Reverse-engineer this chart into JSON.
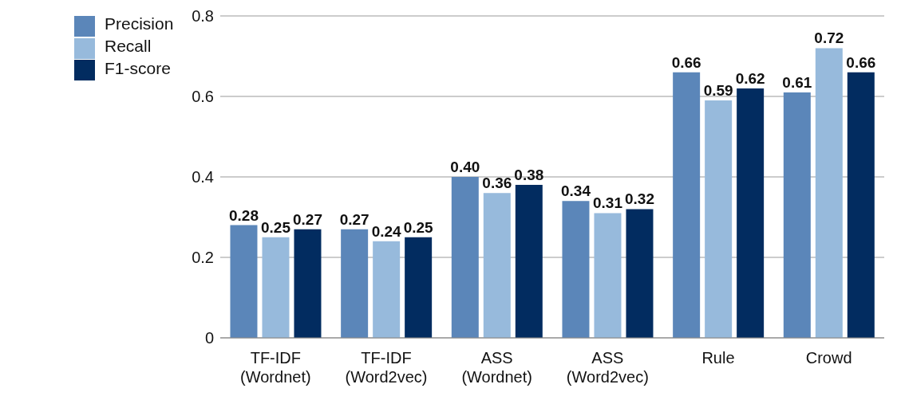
{
  "chart_data": {
    "type": "bar",
    "categories": [
      "TF-IDF (Wordnet)",
      "TF-IDF (Word2vec)",
      "ASS (Wordnet)",
      "ASS (Word2vec)",
      "Rule",
      "Crowd"
    ],
    "series": [
      {
        "name": "Precision",
        "color": "#5b86b9",
        "values": [
          0.28,
          0.27,
          0.4,
          0.34,
          0.66,
          0.61
        ],
        "value_labels": [
          "0.28",
          "0.27",
          "0.40",
          "0.34",
          "0.66",
          "0.61"
        ]
      },
      {
        "name": "Recall",
        "color": "#97badc",
        "values": [
          0.25,
          0.24,
          0.36,
          0.31,
          0.59,
          0.72
        ],
        "value_labels": [
          "0.25",
          "0.24",
          "0.36",
          "0.31",
          "0.59",
          "0.72"
        ]
      },
      {
        "name": "F1-score",
        "color": "#022c60",
        "values": [
          0.27,
          0.25,
          0.38,
          0.32,
          0.62,
          0.66
        ],
        "value_labels": [
          "0.27",
          "0.25",
          "0.38",
          "0.32",
          "0.62",
          "0.66"
        ]
      }
    ],
    "ylim": [
      0,
      0.8
    ],
    "yticks": [
      0,
      0.2,
      0.4,
      0.6,
      0.8
    ],
    "grid": "y",
    "legend": "top left"
  }
}
